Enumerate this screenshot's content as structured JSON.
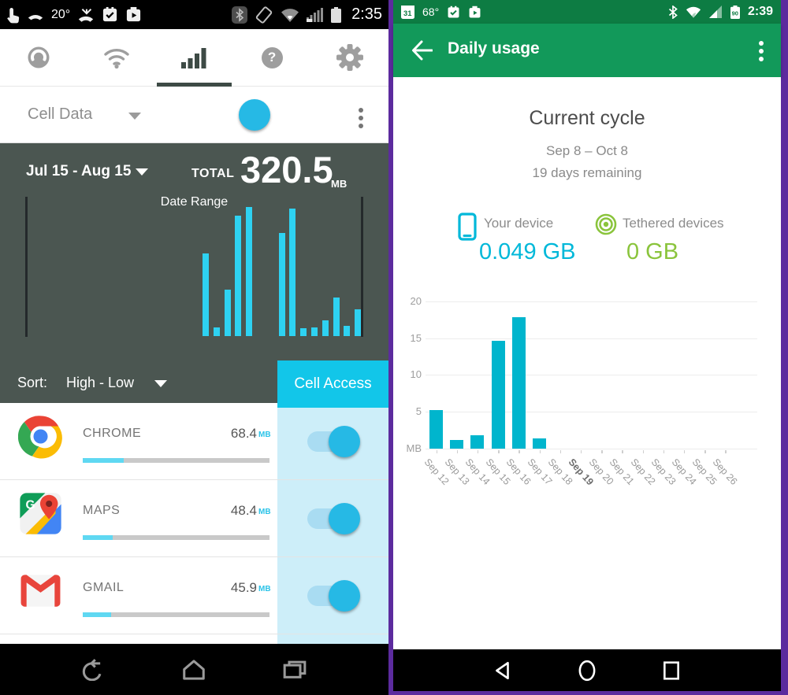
{
  "left": {
    "status_bar": {
      "temperature": "20°",
      "time": "2:35",
      "left_icons": [
        "tap-icon",
        "call-icon",
        "temperature",
        "missed-call-icon",
        "event-check-icon",
        "play-upload-icon"
      ],
      "right_icons": [
        "bluetooth-icon",
        "screen-rotate-icon",
        "wifi-icon",
        "cell-signal-icon",
        "battery-icon"
      ]
    },
    "tabs": [
      {
        "name": "data-gauge",
        "active": false
      },
      {
        "name": "wifi",
        "active": false
      },
      {
        "name": "cell-signal",
        "active": true
      },
      {
        "name": "help",
        "active": false
      },
      {
        "name": "settings",
        "active": false
      }
    ],
    "cell_data_row": {
      "label": "Cell Data",
      "toggle_on": true
    },
    "usage_panel": {
      "period": "Jul 15 - Aug 15",
      "total_label": "TOTAL",
      "total_value": "320.5",
      "total_unit": "MB",
      "chart_label": "Date Range"
    },
    "sort_row": {
      "label": "Sort:",
      "value": "High - Low"
    },
    "cell_access_header": "Cell Access",
    "apps": [
      {
        "name": "CHROME",
        "usage": "68.4",
        "unit": "MB",
        "progress_percent": 22,
        "toggle_on": true
      },
      {
        "name": "MAPS",
        "usage": "48.4",
        "unit": "MB",
        "progress_percent": 16,
        "toggle_on": true
      },
      {
        "name": "GMAIL",
        "usage": "45.9",
        "unit": "MB",
        "progress_percent": 15,
        "toggle_on": true
      }
    ]
  },
  "right": {
    "status_bar": {
      "calendar_day": "31",
      "temperature": "68°",
      "battery_percent": "90",
      "time": "2:39"
    },
    "app_bar": {
      "title": "Daily usage"
    },
    "cycle": {
      "title": "Current cycle",
      "date_range": "Sep 8 – Oct 8",
      "days_remaining": "19 days remaining"
    },
    "stats": [
      {
        "label": "Your device",
        "value": "0.049 GB"
      },
      {
        "label": "Tethered devices",
        "value": "0 GB"
      }
    ]
  },
  "icons": {
    "help_glyph": "?",
    "maps_g": "G"
  },
  "colors": {
    "accent_cyan": "#12c6e9",
    "left_chart_cyan": "#2ed2f2",
    "dark_panel": "#4b5651",
    "appbar_green": "#12995a",
    "statusbar_green": "#0d7c43",
    "device_cyan": "#00b8d9",
    "tether_green": "#8ac43c",
    "daily_bar_teal": "#00b5cd",
    "frame_purple": "#5c2b9e",
    "toggle_knob": "#26b9e5",
    "toggle_track": "#a9dcf2",
    "light_cyan_column": "#cdeef9"
  },
  "chart_data": [
    {
      "id": "cycle-usage-sparkline",
      "type": "bar",
      "title": "Date Range",
      "note": "unlabeled per-day usage bars inside the date-range selector; values are % of tallest bar",
      "values_percent_of_max": [
        64,
        7,
        36,
        93,
        100,
        0,
        0,
        80,
        99,
        6,
        7,
        12,
        30,
        8,
        21
      ],
      "color": "#2ed2f2",
      "grid": false,
      "legend": false
    },
    {
      "id": "daily-usage",
      "type": "bar",
      "categories": [
        "Sep 12",
        "Sep 13",
        "Sep 14",
        "Sep 15",
        "Sep 16",
        "Sep 17",
        "Sep 18",
        "Sep 19",
        "Sep 20",
        "Sep 21",
        "Sep 22",
        "Sep 23",
        "Sep 24",
        "Sep 25",
        "Sep 26"
      ],
      "values": [
        5.2,
        1.2,
        1.8,
        14.6,
        17.8,
        1.4,
        0,
        0,
        0,
        0,
        0,
        0,
        0,
        0,
        0
      ],
      "yticks": [
        20,
        15,
        10,
        5
      ],
      "ylabel": "MB",
      "ylim": [
        0,
        21.5
      ],
      "bold_category": "Sep 19",
      "color": "#00b5cd",
      "grid": true,
      "legend": false
    }
  ]
}
